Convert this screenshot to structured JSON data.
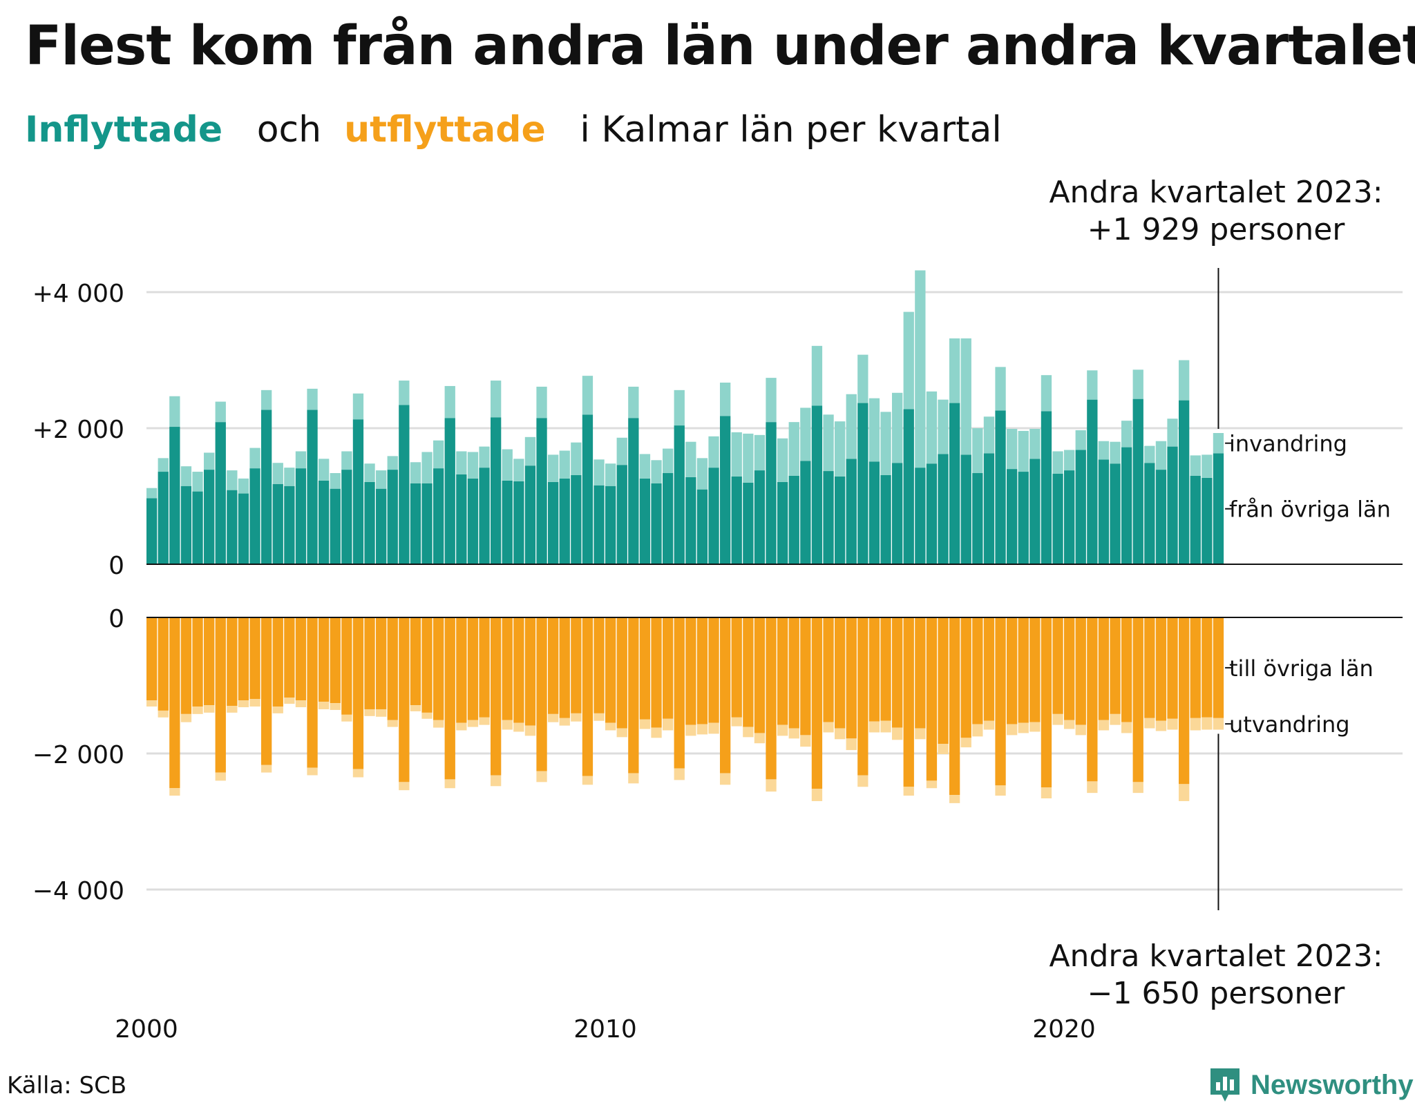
{
  "title": "Flest kom från andra län under andra kvartalet",
  "subtitle": {
    "inflow_word": "Inflyttade",
    "and_word": "och",
    "outflow_word": "utflyttade",
    "rest": "i Kalmar län per kvartal"
  },
  "annotation_top": {
    "line1": "Andra kvartalet 2023:",
    "line2": "+1 929 personer"
  },
  "annotation_bottom": {
    "line1": "Andra kvartalet 2023:",
    "line2": "−1 650 personer"
  },
  "source": "Källa: SCB",
  "logo_text": "Newsworthy",
  "colors": {
    "inflow_domestic": "#14968a",
    "inflow_immigration": "#8ed4cb",
    "outflow_domestic": "#f5a01a",
    "outflow_emigration": "#fbd898",
    "gridline": "#dddddd",
    "logo": "#2f8f80"
  },
  "chart_data": {
    "type": "bar",
    "stacked": true,
    "layout": "mirrored panels (inflow above, outflow below)",
    "x_labels": [
      "2000",
      "2010",
      "2020"
    ],
    "period": "2000 Q1 – 2023 Q2, quarterly",
    "inflow_ticks": [
      "+4 000",
      "+2 000",
      "0"
    ],
    "outflow_ticks": [
      "0",
      "−2 000",
      "−4 000"
    ],
    "inflow_ylim": [
      0,
      4000
    ],
    "outflow_ylim": [
      -4000,
      0
    ],
    "grid": true,
    "inflow_series": [
      {
        "name": "från övriga län",
        "values": [
          970,
          1360,
          2020,
          1150,
          1070,
          1390,
          2090,
          1090,
          1040,
          1410,
          2270,
          1180,
          1150,
          1410,
          2270,
          1230,
          1110,
          1390,
          2130,
          1210,
          1110,
          1390,
          2340,
          1190,
          1190,
          1410,
          2150,
          1320,
          1260,
          1420,
          2160,
          1230,
          1220,
          1450,
          2150,
          1210,
          1260,
          1310,
          2200,
          1160,
          1150,
          1460,
          2150,
          1260,
          1190,
          1340,
          2040,
          1280,
          1100,
          1420,
          2180,
          1290,
          1200,
          1380,
          2090,
          1210,
          1300,
          1520,
          2330,
          1370,
          1290,
          1550,
          2370,
          1510,
          1310,
          1490,
          2280,
          1420,
          1480,
          1620,
          2370,
          1610,
          1340,
          1630,
          2260,
          1400,
          1360,
          1550,
          2250,
          1330,
          1380,
          1680,
          2420,
          1540,
          1480,
          1720,
          2430,
          1490,
          1390,
          1730,
          2410,
          1300,
          1270,
          1630
        ]
      },
      {
        "name": "invandring",
        "values": [
          150,
          200,
          450,
          290,
          290,
          250,
          300,
          290,
          220,
          300,
          290,
          310,
          270,
          250,
          310,
          320,
          230,
          270,
          380,
          270,
          270,
          200,
          360,
          310,
          460,
          410,
          470,
          340,
          390,
          310,
          540,
          460,
          330,
          420,
          460,
          400,
          410,
          480,
          570,
          380,
          330,
          400,
          460,
          360,
          340,
          360,
          520,
          520,
          460,
          460,
          490,
          650,
          720,
          520,
          650,
          640,
          790,
          780,
          880,
          830,
          810,
          950,
          710,
          930,
          930,
          1030,
          1430,
          2900,
          1060,
          800,
          950,
          1710,
          660,
          540,
          640,
          590,
          600,
          440,
          530,
          330,
          300,
          290,
          430,
          270,
          320,
          390,
          430,
          250,
          420,
          410,
          590,
          300,
          340,
          299
        ]
      }
    ],
    "outflow_series": [
      {
        "name": "till övriga län",
        "values": [
          -1220,
          -1370,
          -2510,
          -1420,
          -1310,
          -1290,
          -2280,
          -1300,
          -1220,
          -1200,
          -2170,
          -1310,
          -1180,
          -1220,
          -2210,
          -1240,
          -1260,
          -1430,
          -2230,
          -1350,
          -1350,
          -1510,
          -2420,
          -1290,
          -1400,
          -1510,
          -2380,
          -1550,
          -1510,
          -1470,
          -2320,
          -1510,
          -1550,
          -1590,
          -2260,
          -1420,
          -1480,
          -1410,
          -2330,
          -1410,
          -1550,
          -1630,
          -2290,
          -1500,
          -1620,
          -1490,
          -2220,
          -1580,
          -1570,
          -1550,
          -2290,
          -1470,
          -1610,
          -1700,
          -2380,
          -1580,
          -1630,
          -1730,
          -2520,
          -1540,
          -1630,
          -1780,
          -2320,
          -1530,
          -1520,
          -1620,
          -2490,
          -1630,
          -2400,
          -1860,
          -2610,
          -1770,
          -1570,
          -1520,
          -2470,
          -1570,
          -1550,
          -1540,
          -2500,
          -1420,
          -1510,
          -1580,
          -2410,
          -1510,
          -1420,
          -1540,
          -2420,
          -1480,
          -1520,
          -1490,
          -2450,
          -1480,
          -1470,
          -1480
        ]
      },
      {
        "name": "utvandring",
        "values": [
          -90,
          -100,
          -110,
          -120,
          -110,
          -110,
          -120,
          -100,
          -100,
          -110,
          -110,
          -100,
          -90,
          -100,
          -110,
          -110,
          -100,
          -100,
          -120,
          -100,
          -110,
          -100,
          -120,
          -90,
          -90,
          -110,
          -130,
          -110,
          -100,
          -110,
          -160,
          -140,
          -130,
          -150,
          -160,
          -120,
          -110,
          -120,
          -130,
          -110,
          -110,
          -130,
          -150,
          -140,
          -150,
          -170,
          -170,
          -160,
          -150,
          -160,
          -170,
          -130,
          -150,
          -150,
          -180,
          -160,
          -150,
          -170,
          -180,
          -150,
          -160,
          -170,
          -170,
          -160,
          -170,
          -180,
          -130,
          -160,
          -110,
          -150,
          -120,
          -140,
          -180,
          -130,
          -150,
          -160,
          -150,
          -140,
          -160,
          -160,
          -130,
          -150,
          -170,
          -150,
          -160,
          -160,
          -160,
          -150,
          -150,
          -160,
          -250,
          -180,
          -180,
          -170
        ]
      }
    ],
    "series_labels": {
      "inflow_immigration": "invandring",
      "inflow_domestic": "från övriga län",
      "outflow_domestic": "till övriga län",
      "outflow_emigration": "utvandring"
    }
  }
}
